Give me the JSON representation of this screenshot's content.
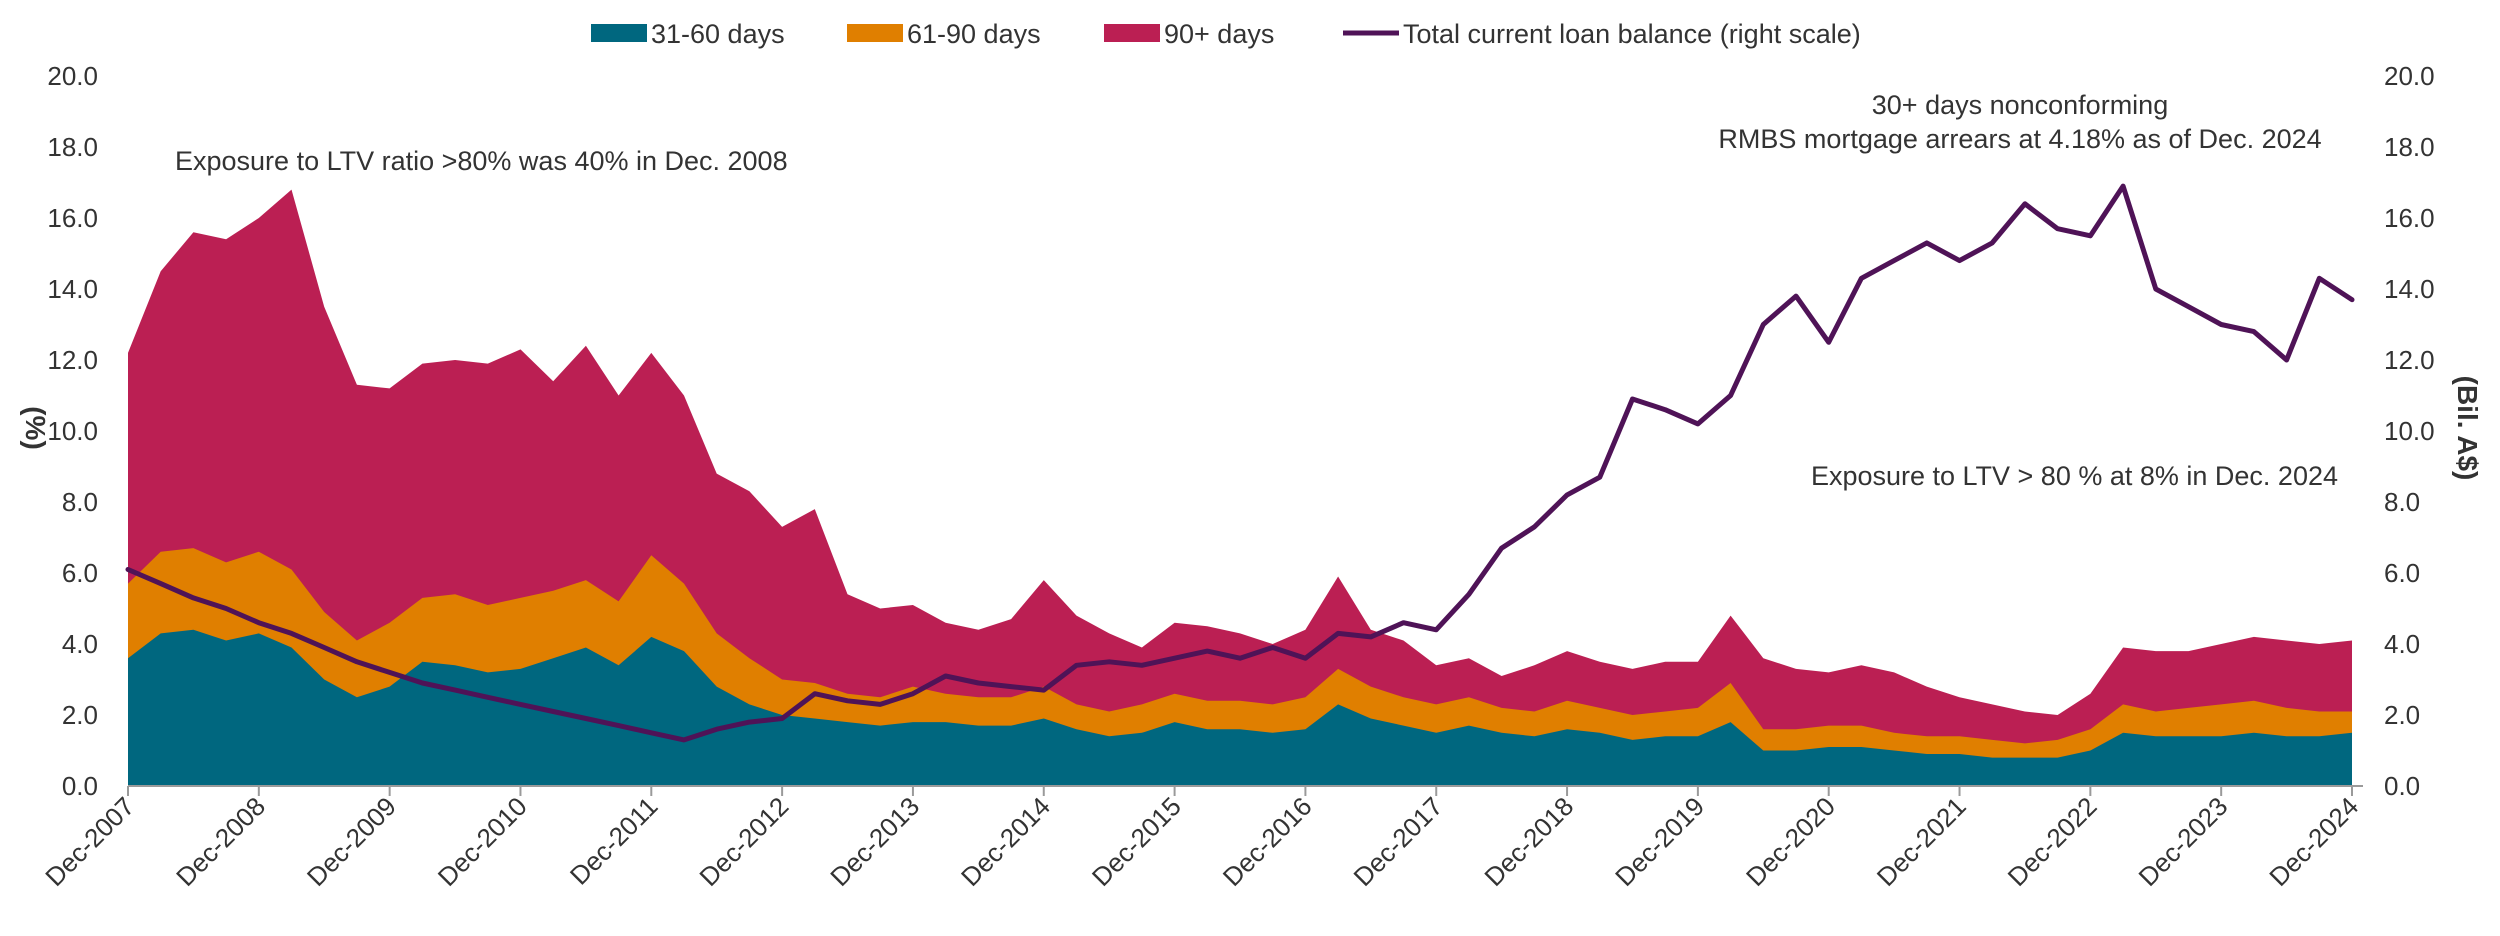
{
  "chart_data": {
    "type": "area",
    "title": "",
    "ylabel_left": "(%)",
    "ylabel_right": "(Bil. A$)",
    "ylim_left": [
      0,
      20
    ],
    "ylim_right": [
      0,
      20
    ],
    "yticks": [
      "0.0",
      "2.0",
      "4.0",
      "6.0",
      "8.0",
      "10.0",
      "12.0",
      "14.0",
      "16.0",
      "18.0",
      "20.0"
    ],
    "x_start": "2007-12",
    "x_end": "2024-12",
    "x_tick_labels": [
      "Dec-2007",
      "Dec-2008",
      "Dec-2009",
      "Dec-2010",
      "Dec-2011",
      "Dec-2012",
      "Dec-2013",
      "Dec-2014",
      "Dec-2015",
      "Dec-2016",
      "Dec-2017",
      "Dec-2018",
      "Dec-2019",
      "Dec-2020",
      "Dec-2021",
      "Dec-2022",
      "Dec-2023",
      "Dec-2024"
    ],
    "legend_position": "top",
    "legend": [
      {
        "label": "31-60 days",
        "color": "#00677f",
        "kind": "area"
      },
      {
        "label": "61-90 days",
        "color": "#e07f00",
        "kind": "area"
      },
      {
        "label": "90+ days",
        "color": "#bb1f53",
        "kind": "area"
      },
      {
        "label": "Total current loan balance (right scale)",
        "color": "#4f1357",
        "kind": "line"
      }
    ],
    "annotations": [
      {
        "id": "ltv2008",
        "lines": [
          "Exposure to LTV ratio >80% was 40% in Dec. 2008"
        ]
      },
      {
        "id": "arrears",
        "lines": [
          "30+ days nonconforming",
          "RMBS mortgage arrears at 4.18% as of Dec. 2024"
        ]
      },
      {
        "id": "ltv2024",
        "lines": [
          "Exposure to LTV > 80 % at 8% in Dec. 2024"
        ]
      }
    ],
    "series": [
      {
        "name": "31-60 days",
        "axis": "left",
        "color": "#00677f",
        "points": [
          [
            "2007-12",
            3.6
          ],
          [
            "2008-03",
            4.3
          ],
          [
            "2008-06",
            4.4
          ],
          [
            "2008-09",
            4.1
          ],
          [
            "2008-12",
            4.3
          ],
          [
            "2009-03",
            3.9
          ],
          [
            "2009-06",
            3.0
          ],
          [
            "2009-09",
            2.5
          ],
          [
            "2009-12",
            2.8
          ],
          [
            "2010-03",
            3.5
          ],
          [
            "2010-06",
            3.4
          ],
          [
            "2010-09",
            3.2
          ],
          [
            "2010-12",
            3.3
          ],
          [
            "2011-03",
            3.6
          ],
          [
            "2011-06",
            3.9
          ],
          [
            "2011-09",
            3.4
          ],
          [
            "2011-12",
            4.2
          ],
          [
            "2012-03",
            3.8
          ],
          [
            "2012-06",
            2.8
          ],
          [
            "2012-09",
            2.3
          ],
          [
            "2012-12",
            2.0
          ],
          [
            "2013-03",
            1.9
          ],
          [
            "2013-06",
            1.8
          ],
          [
            "2013-09",
            1.7
          ],
          [
            "2013-12",
            1.8
          ],
          [
            "2014-03",
            1.8
          ],
          [
            "2014-06",
            1.7
          ],
          [
            "2014-09",
            1.7
          ],
          [
            "2014-12",
            1.9
          ],
          [
            "2015-03",
            1.6
          ],
          [
            "2015-06",
            1.4
          ],
          [
            "2015-09",
            1.5
          ],
          [
            "2015-12",
            1.8
          ],
          [
            "2016-03",
            1.6
          ],
          [
            "2016-06",
            1.6
          ],
          [
            "2016-09",
            1.5
          ],
          [
            "2016-12",
            1.6
          ],
          [
            "2017-03",
            2.3
          ],
          [
            "2017-06",
            1.9
          ],
          [
            "2017-09",
            1.7
          ],
          [
            "2017-12",
            1.5
          ],
          [
            "2018-03",
            1.7
          ],
          [
            "2018-06",
            1.5
          ],
          [
            "2018-09",
            1.4
          ],
          [
            "2018-12",
            1.6
          ],
          [
            "2019-03",
            1.5
          ],
          [
            "2019-06",
            1.3
          ],
          [
            "2019-09",
            1.4
          ],
          [
            "2019-12",
            1.4
          ],
          [
            "2020-03",
            1.8
          ],
          [
            "2020-06",
            1.0
          ],
          [
            "2020-09",
            1.0
          ],
          [
            "2020-12",
            1.1
          ],
          [
            "2021-03",
            1.1
          ],
          [
            "2021-06",
            1.0
          ],
          [
            "2021-09",
            0.9
          ],
          [
            "2021-12",
            0.9
          ],
          [
            "2022-03",
            0.8
          ],
          [
            "2022-06",
            0.8
          ],
          [
            "2022-09",
            0.8
          ],
          [
            "2022-12",
            1.0
          ],
          [
            "2023-03",
            1.5
          ],
          [
            "2023-06",
            1.4
          ],
          [
            "2023-09",
            1.4
          ],
          [
            "2023-12",
            1.4
          ],
          [
            "2024-03",
            1.5
          ],
          [
            "2024-06",
            1.4
          ],
          [
            "2024-09",
            1.4
          ],
          [
            "2024-12",
            1.5
          ]
        ]
      },
      {
        "name": "61-90 days",
        "axis": "left",
        "color": "#e07f00",
        "points": [
          [
            "2007-12",
            5.7
          ],
          [
            "2008-03",
            6.6
          ],
          [
            "2008-06",
            6.7
          ],
          [
            "2008-09",
            6.3
          ],
          [
            "2008-12",
            6.6
          ],
          [
            "2009-03",
            6.1
          ],
          [
            "2009-06",
            4.9
          ],
          [
            "2009-09",
            4.1
          ],
          [
            "2009-12",
            4.6
          ],
          [
            "2010-03",
            5.3
          ],
          [
            "2010-06",
            5.4
          ],
          [
            "2010-09",
            5.1
          ],
          [
            "2010-12",
            5.3
          ],
          [
            "2011-03",
            5.5
          ],
          [
            "2011-06",
            5.8
          ],
          [
            "2011-09",
            5.2
          ],
          [
            "2011-12",
            6.5
          ],
          [
            "2012-03",
            5.7
          ],
          [
            "2012-06",
            4.3
          ],
          [
            "2012-09",
            3.6
          ],
          [
            "2012-12",
            3.0
          ],
          [
            "2013-03",
            2.9
          ],
          [
            "2013-06",
            2.6
          ],
          [
            "2013-09",
            2.5
          ],
          [
            "2013-12",
            2.8
          ],
          [
            "2014-03",
            2.6
          ],
          [
            "2014-06",
            2.5
          ],
          [
            "2014-09",
            2.5
          ],
          [
            "2014-12",
            2.8
          ],
          [
            "2015-03",
            2.3
          ],
          [
            "2015-06",
            2.1
          ],
          [
            "2015-09",
            2.3
          ],
          [
            "2015-12",
            2.6
          ],
          [
            "2016-03",
            2.4
          ],
          [
            "2016-06",
            2.4
          ],
          [
            "2016-09",
            2.3
          ],
          [
            "2016-12",
            2.5
          ],
          [
            "2017-03",
            3.3
          ],
          [
            "2017-06",
            2.8
          ],
          [
            "2017-09",
            2.5
          ],
          [
            "2017-12",
            2.3
          ],
          [
            "2018-03",
            2.5
          ],
          [
            "2018-06",
            2.2
          ],
          [
            "2018-09",
            2.1
          ],
          [
            "2018-12",
            2.4
          ],
          [
            "2019-03",
            2.2
          ],
          [
            "2019-06",
            2.0
          ],
          [
            "2019-09",
            2.1
          ],
          [
            "2019-12",
            2.2
          ],
          [
            "2020-03",
            2.9
          ],
          [
            "2020-06",
            1.6
          ],
          [
            "2020-09",
            1.6
          ],
          [
            "2020-12",
            1.7
          ],
          [
            "2021-03",
            1.7
          ],
          [
            "2021-06",
            1.5
          ],
          [
            "2021-09",
            1.4
          ],
          [
            "2021-12",
            1.4
          ],
          [
            "2022-03",
            1.3
          ],
          [
            "2022-06",
            1.2
          ],
          [
            "2022-09",
            1.3
          ],
          [
            "2022-12",
            1.6
          ],
          [
            "2023-03",
            2.3
          ],
          [
            "2023-06",
            2.1
          ],
          [
            "2023-09",
            2.2
          ],
          [
            "2023-12",
            2.3
          ],
          [
            "2024-03",
            2.4
          ],
          [
            "2024-06",
            2.2
          ],
          [
            "2024-09",
            2.1
          ],
          [
            "2024-12",
            2.1
          ]
        ]
      },
      {
        "name": "90+ days",
        "axis": "left",
        "color": "#bb1f53",
        "points": [
          [
            "2007-12",
            12.2
          ],
          [
            "2008-03",
            14.5
          ],
          [
            "2008-06",
            15.6
          ],
          [
            "2008-09",
            15.4
          ],
          [
            "2008-12",
            16.0
          ],
          [
            "2009-03",
            16.8
          ],
          [
            "2009-06",
            13.5
          ],
          [
            "2009-09",
            11.3
          ],
          [
            "2009-12",
            11.2
          ],
          [
            "2010-03",
            11.9
          ],
          [
            "2010-06",
            12.0
          ],
          [
            "2010-09",
            11.9
          ],
          [
            "2010-12",
            12.3
          ],
          [
            "2011-03",
            11.4
          ],
          [
            "2011-06",
            12.4
          ],
          [
            "2011-09",
            11.0
          ],
          [
            "2011-12",
            12.2
          ],
          [
            "2012-03",
            11.0
          ],
          [
            "2012-06",
            8.8
          ],
          [
            "2012-09",
            8.3
          ],
          [
            "2012-12",
            7.3
          ],
          [
            "2013-03",
            7.8
          ],
          [
            "2013-06",
            5.4
          ],
          [
            "2013-09",
            5.0
          ],
          [
            "2013-12",
            5.1
          ],
          [
            "2014-03",
            4.6
          ],
          [
            "2014-06",
            4.4
          ],
          [
            "2014-09",
            4.7
          ],
          [
            "2014-12",
            5.8
          ],
          [
            "2015-03",
            4.8
          ],
          [
            "2015-06",
            4.3
          ],
          [
            "2015-09",
            3.9
          ],
          [
            "2015-12",
            4.6
          ],
          [
            "2016-03",
            4.5
          ],
          [
            "2016-06",
            4.3
          ],
          [
            "2016-09",
            4.0
          ],
          [
            "2016-12",
            4.4
          ],
          [
            "2017-03",
            5.9
          ],
          [
            "2017-06",
            4.4
          ],
          [
            "2017-09",
            4.1
          ],
          [
            "2017-12",
            3.4
          ],
          [
            "2018-03",
            3.6
          ],
          [
            "2018-06",
            3.1
          ],
          [
            "2018-09",
            3.4
          ],
          [
            "2018-12",
            3.8
          ],
          [
            "2019-03",
            3.5
          ],
          [
            "2019-06",
            3.3
          ],
          [
            "2019-09",
            3.5
          ],
          [
            "2019-12",
            3.5
          ],
          [
            "2020-03",
            4.8
          ],
          [
            "2020-06",
            3.6
          ],
          [
            "2020-09",
            3.3
          ],
          [
            "2020-12",
            3.2
          ],
          [
            "2021-03",
            3.4
          ],
          [
            "2021-06",
            3.2
          ],
          [
            "2021-09",
            2.8
          ],
          [
            "2021-12",
            2.5
          ],
          [
            "2022-03",
            2.3
          ],
          [
            "2022-06",
            2.1
          ],
          [
            "2022-09",
            2.0
          ],
          [
            "2022-12",
            2.6
          ],
          [
            "2023-03",
            3.9
          ],
          [
            "2023-06",
            3.8
          ],
          [
            "2023-09",
            3.8
          ],
          [
            "2023-12",
            4.0
          ],
          [
            "2024-03",
            4.2
          ],
          [
            "2024-06",
            4.1
          ],
          [
            "2024-09",
            4.0
          ],
          [
            "2024-12",
            4.1
          ]
        ]
      },
      {
        "name": "Total current loan balance (right scale)",
        "axis": "right",
        "color": "#4f1357",
        "points": [
          [
            "2007-12",
            6.1
          ],
          [
            "2008-03",
            5.7
          ],
          [
            "2008-06",
            5.3
          ],
          [
            "2008-09",
            5.0
          ],
          [
            "2008-12",
            4.6
          ],
          [
            "2009-03",
            4.3
          ],
          [
            "2009-06",
            3.9
          ],
          [
            "2009-09",
            3.5
          ],
          [
            "2009-12",
            3.2
          ],
          [
            "2010-03",
            2.9
          ],
          [
            "2010-06",
            2.7
          ],
          [
            "2010-09",
            2.5
          ],
          [
            "2010-12",
            2.3
          ],
          [
            "2011-03",
            2.1
          ],
          [
            "2011-06",
            1.9
          ],
          [
            "2011-09",
            1.7
          ],
          [
            "2011-12",
            1.5
          ],
          [
            "2012-03",
            1.3
          ],
          [
            "2012-06",
            1.6
          ],
          [
            "2012-09",
            1.8
          ],
          [
            "2012-12",
            1.9
          ],
          [
            "2013-03",
            2.6
          ],
          [
            "2013-06",
            2.4
          ],
          [
            "2013-09",
            2.3
          ],
          [
            "2013-12",
            2.6
          ],
          [
            "2014-03",
            3.1
          ],
          [
            "2014-06",
            2.9
          ],
          [
            "2014-09",
            2.8
          ],
          [
            "2014-12",
            2.7
          ],
          [
            "2015-03",
            3.4
          ],
          [
            "2015-06",
            3.5
          ],
          [
            "2015-09",
            3.4
          ],
          [
            "2015-12",
            3.6
          ],
          [
            "2016-03",
            3.8
          ],
          [
            "2016-06",
            3.6
          ],
          [
            "2016-09",
            3.9
          ],
          [
            "2016-12",
            3.6
          ],
          [
            "2017-03",
            4.3
          ],
          [
            "2017-06",
            4.2
          ],
          [
            "2017-09",
            4.6
          ],
          [
            "2017-12",
            4.4
          ],
          [
            "2018-03",
            5.4
          ],
          [
            "2018-06",
            6.7
          ],
          [
            "2018-09",
            7.3
          ],
          [
            "2018-12",
            8.2
          ],
          [
            "2019-03",
            8.7
          ],
          [
            "2019-06",
            10.9
          ],
          [
            "2019-09",
            10.6
          ],
          [
            "2019-12",
            10.2
          ],
          [
            "2020-03",
            11.0
          ],
          [
            "2020-06",
            13.0
          ],
          [
            "2020-09",
            13.8
          ],
          [
            "2020-12",
            12.5
          ],
          [
            "2021-03",
            14.3
          ],
          [
            "2021-06",
            14.8
          ],
          [
            "2021-09",
            15.3
          ],
          [
            "2021-12",
            14.8
          ],
          [
            "2022-03",
            15.3
          ],
          [
            "2022-06",
            16.4
          ],
          [
            "2022-09",
            15.7
          ],
          [
            "2022-12",
            15.5
          ],
          [
            "2023-03",
            16.9
          ],
          [
            "2023-06",
            14.0
          ],
          [
            "2023-09",
            13.5
          ],
          [
            "2023-12",
            13.0
          ],
          [
            "2024-03",
            12.8
          ],
          [
            "2024-06",
            12.0
          ],
          [
            "2024-09",
            14.3
          ],
          [
            "2024-12",
            13.7
          ]
        ]
      }
    ]
  }
}
